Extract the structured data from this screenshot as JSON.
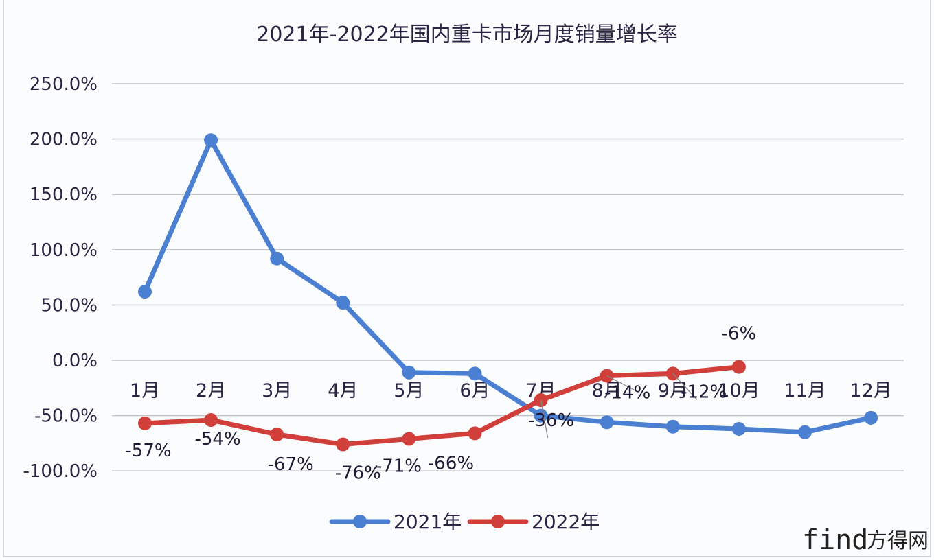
{
  "chart_data": {
    "type": "line",
    "title": "2021年-2022年国内重卡市场月度销量增长率",
    "xlabel": "",
    "ylabel": "",
    "categories": [
      "1月",
      "2月",
      "3月",
      "4月",
      "5月",
      "6月",
      "7月",
      "8月",
      "9月",
      "10月",
      "11月",
      "12月"
    ],
    "ylim": [
      -100,
      250
    ],
    "yticks": [
      250,
      200,
      150,
      100,
      50,
      0,
      -50,
      -100
    ],
    "ytick_labels": [
      "250.0%",
      "200.0%",
      "150.0%",
      "100.0%",
      "50.0%",
      "0.0%",
      "-50.0%",
      "-100.0%"
    ],
    "grid": true,
    "legend_position": "bottom",
    "series": [
      {
        "name": "2021年",
        "color": "#4a7fd1",
        "values": [
          62,
          199,
          92,
          52,
          -11,
          -12,
          -50,
          -56,
          -60,
          -62,
          -65,
          -52
        ],
        "data_labels": []
      },
      {
        "name": "2022年",
        "color": "#d13f3a",
        "values": [
          -57,
          -54,
          -67,
          -76,
          -71,
          -66,
          -36,
          -14,
          -12,
          -6,
          null,
          null
        ],
        "data_labels": [
          "-57%",
          "-54%",
          "-67%",
          "-76%",
          "-71%",
          "-66%",
          "-36%",
          "-14%",
          "-12%",
          "-6%"
        ]
      }
    ]
  },
  "legend": {
    "items": [
      {
        "label": "2021年",
        "color": "#4a7fd1"
      },
      {
        "label": "2022年",
        "color": "#d13f3a"
      }
    ]
  },
  "watermark": {
    "latin": "find",
    "chinese": "方得网"
  }
}
